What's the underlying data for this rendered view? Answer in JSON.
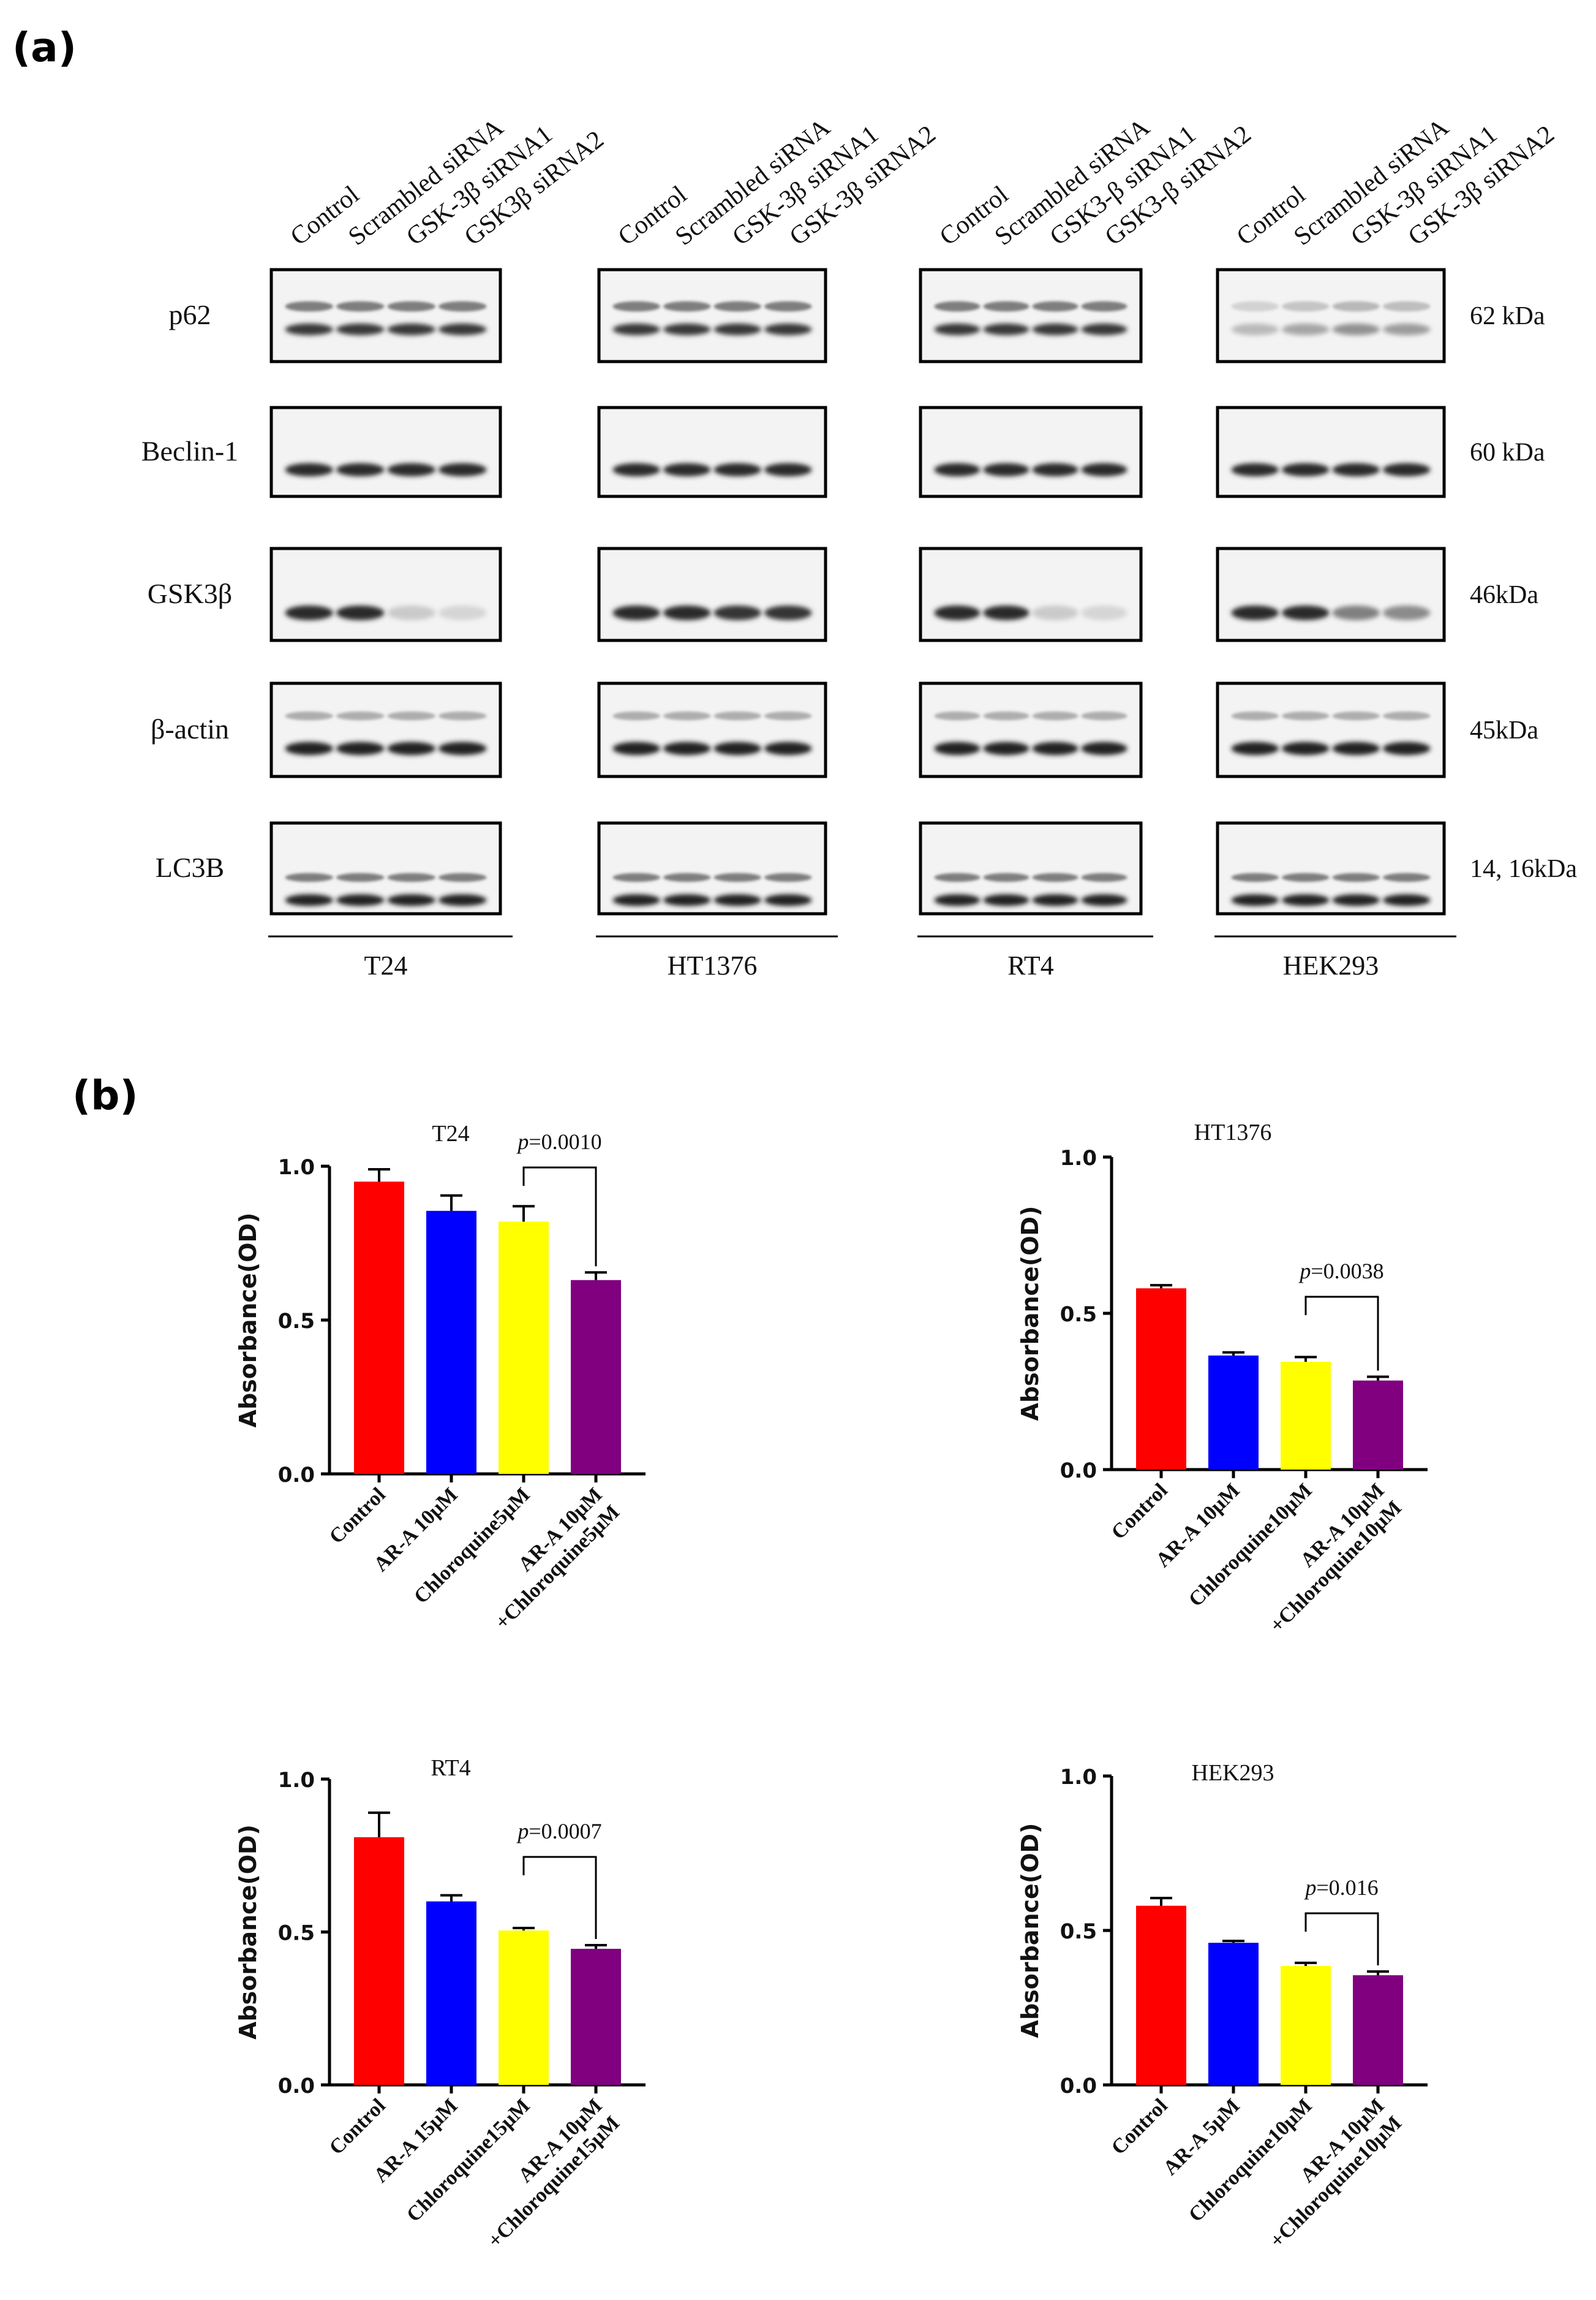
{
  "panels": {
    "a": "(a)",
    "b": "(b)"
  },
  "blot": {
    "lane_labels": [
      [
        "Control",
        "Scrambled siRNA",
        "GSK-3β siRNA1",
        "GSK3β siRNA2"
      ],
      [
        "Control",
        "Scrambled siRNA",
        "GSK-3β siRNA1",
        "GSK-3β siRNA2"
      ],
      [
        "Control",
        "Scrambled siRNA",
        "GSK3-β siRNA1",
        "GSK3-β siRNA2"
      ],
      [
        "Control",
        "Scrambled siRNA",
        "GSK-3β siRNA1",
        "GSK-3β siRNA2"
      ]
    ],
    "proteins": [
      "p62",
      "Beclin-1",
      "GSK3β",
      "β-actin",
      "LC3B"
    ],
    "sizes": [
      "62 kDa",
      "60 kDa",
      "46kDa",
      "45kDa",
      "14, 16kDa"
    ],
    "cell_lines": [
      "T24",
      "HT1376",
      "RT4",
      "HEK293"
    ]
  },
  "chart_data": [
    {
      "type": "bar",
      "title": "T24",
      "ylabel": "Absorbance(OD)",
      "categories": [
        "Control",
        "AR-A 10μM",
        "Chloroquine5μM",
        "AR-A 10μM\n+Chloroquine5μM"
      ],
      "values": [
        0.95,
        0.855,
        0.82,
        0.63
      ],
      "errors": [
        0.04,
        0.05,
        0.05,
        0.025
      ],
      "colors": [
        "#ff0000",
        "#0000ff",
        "#ffff00",
        "#800080"
      ],
      "ylim": [
        0,
        1.0
      ],
      "yticks": [
        "0.0",
        "0.5",
        "1.0"
      ],
      "annotation": {
        "p": "p",
        "text": "=0.0010"
      }
    },
    {
      "type": "bar",
      "title": "HT1376",
      "ylabel": "Absorbance(OD)",
      "categories": [
        "Control",
        "AR-A 10μM",
        "Chloroquine10μM",
        "AR-A 10μM\n+Chloroquine10μM"
      ],
      "values": [
        0.58,
        0.365,
        0.345,
        0.285
      ],
      "errors": [
        0.01,
        0.01,
        0.015,
        0.012
      ],
      "colors": [
        "#ff0000",
        "#0000ff",
        "#ffff00",
        "#800080"
      ],
      "ylim": [
        0,
        1.0
      ],
      "yticks": [
        "0.0",
        "0.5",
        "1.0"
      ],
      "annotation": {
        "p": "p",
        "text": "=0.0038"
      }
    },
    {
      "type": "bar",
      "title": "RT4",
      "ylabel": "Absorbance(OD)",
      "categories": [
        "Control",
        "AR-A 15μM",
        "Chloroquine15μM",
        "AR-A 10μM\n+Chloroquine15μM"
      ],
      "values": [
        0.81,
        0.6,
        0.505,
        0.445
      ],
      "errors": [
        0.08,
        0.02,
        0.008,
        0.012
      ],
      "colors": [
        "#ff0000",
        "#0000ff",
        "#ffff00",
        "#800080"
      ],
      "ylim": [
        0,
        1.0
      ],
      "yticks": [
        "0.0",
        "0.5",
        "1.0"
      ],
      "annotation": {
        "p": "p",
        "text": "=0.0007"
      }
    },
    {
      "type": "bar",
      "title": "HEK293",
      "ylabel": "Absorbance(OD)",
      "categories": [
        "Control",
        "AR-A 5μM",
        "Chloroquine10μM",
        "AR-A 10μM\n+Chloroquine10μM"
      ],
      "values": [
        0.58,
        0.46,
        0.385,
        0.355
      ],
      "errors": [
        0.025,
        0.006,
        0.01,
        0.012
      ],
      "colors": [
        "#ff0000",
        "#0000ff",
        "#ffff00",
        "#800080"
      ],
      "ylim": [
        0,
        1.0
      ],
      "yticks": [
        "0.0",
        "0.5",
        "1.0"
      ],
      "annotation": {
        "p": "p",
        "text": "=0.016"
      }
    }
  ]
}
